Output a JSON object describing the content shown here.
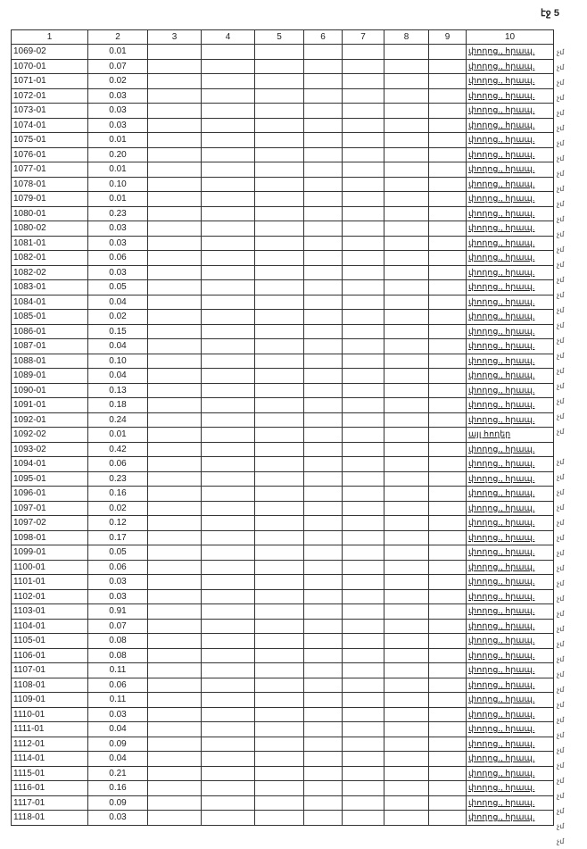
{
  "page_label": "էջ 5",
  "headers": [
    "1",
    "2",
    "3",
    "4",
    "5",
    "6",
    "7",
    "8",
    "9",
    "10"
  ],
  "rows": [
    [
      "1069-02",
      "0.01",
      "փողոց., հրապ."
    ],
    [
      "1070-01",
      "0.07",
      "փողոց., հրապ."
    ],
    [
      "1071-01",
      "0.02",
      "փողոց., հրապ."
    ],
    [
      "1072-01",
      "0.03",
      "փողոց., հրապ."
    ],
    [
      "1073-01",
      "0.03",
      "փողոց., հրապ."
    ],
    [
      "1074-01",
      "0.03",
      "փողոց., հրապ."
    ],
    [
      "1075-01",
      "0.01",
      "փողոց., հրապ."
    ],
    [
      "1076-01",
      "0.20",
      "փողոց., հրապ."
    ],
    [
      "1077-01",
      "0.01",
      "փողոց., հրապ."
    ],
    [
      "1078-01",
      "0.10",
      "փողոց., հրապ."
    ],
    [
      "1079-01",
      "0.01",
      "փողոց., հրապ."
    ],
    [
      "1080-01",
      "0.23",
      "փողոց., հրապ."
    ],
    [
      "1080-02",
      "0.03",
      "փողոց., հրապ."
    ],
    [
      "1081-01",
      "0.03",
      "փողոց., հրապ."
    ],
    [
      "1082-01",
      "0.06",
      "փողոց., հրապ."
    ],
    [
      "1082-02",
      "0.03",
      "փողոց., հրապ."
    ],
    [
      "1083-01",
      "0.05",
      "փողոց., հրապ."
    ],
    [
      "1084-01",
      "0.04",
      "փողոց., հրապ."
    ],
    [
      "1085-01",
      "0.02",
      "փողոց., հրապ."
    ],
    [
      "1086-01",
      "0.15",
      "փողոց., հրապ."
    ],
    [
      "1087-01",
      "0.04",
      "փողոց., հրապ."
    ],
    [
      "1088-01",
      "0.10",
      "փողոց., հրապ."
    ],
    [
      "1089-01",
      "0.04",
      "փողոց., հրապ."
    ],
    [
      "1090-01",
      "0.13",
      "փողոց., հրապ."
    ],
    [
      "1091-01",
      "0.18",
      "փողոց., հրապ."
    ],
    [
      "1092-01",
      "0.24",
      "փողոց., հրապ."
    ],
    [
      "1092-02",
      "0.01",
      "այլ հողեր"
    ],
    [
      "1093-02",
      "0.42",
      "փողոց., հրապ."
    ],
    [
      "1094-01",
      "0.06",
      "փողոց., հրապ."
    ],
    [
      "1095-01",
      "0.23",
      "փողոց., հրապ."
    ],
    [
      "1096-01",
      "0.16",
      "փողոց., հրապ."
    ],
    [
      "1097-01",
      "0.02",
      "փողոց., հրապ."
    ],
    [
      "1097-02",
      "0.12",
      "փողոց., հրապ."
    ],
    [
      "1098-01",
      "0.17",
      "փողոց., հրապ."
    ],
    [
      "1099-01",
      "0.05",
      "փողոց., հրապ."
    ],
    [
      "1100-01",
      "0.06",
      "փողոց., հրապ."
    ],
    [
      "1101-01",
      "0.03",
      "փողոց., հրապ."
    ],
    [
      "1102-01",
      "0.03",
      "փողոց., հրապ."
    ],
    [
      "1103-01",
      "0.91",
      "փողոց., հրապ."
    ],
    [
      "1104-01",
      "0.07",
      "փողոց., հրապ."
    ],
    [
      "1105-01",
      "0.08",
      "փողոց., հրապ."
    ],
    [
      "1106-01",
      "0.08",
      "փողոց., հրապ."
    ],
    [
      "1107-01",
      "0.11",
      "փողոց., հրապ."
    ],
    [
      "1108-01",
      "0.06",
      "փողոց., հրապ."
    ],
    [
      "1109-01",
      "0.11",
      "փողոց., հրապ."
    ],
    [
      "1110-01",
      "0.03",
      "փողոց., հրապ."
    ],
    [
      "1111-01",
      "0.04",
      "փողոց., հրապ."
    ],
    [
      "1112-01",
      "0.09",
      "փողոց., հրապ."
    ],
    [
      "1114-01",
      "0.04",
      "փողոց., հրապ."
    ],
    [
      "1115-01",
      "0.21",
      "փողոց., հրապ."
    ],
    [
      "1116-01",
      "0.16",
      "փողոց., հրապ."
    ],
    [
      "1117-01",
      "0.09",
      "փողոց., հրապ."
    ],
    [
      "1118-01",
      "0.03",
      "փողոց., հրապ."
    ]
  ],
  "margin_mark": "չմ"
}
